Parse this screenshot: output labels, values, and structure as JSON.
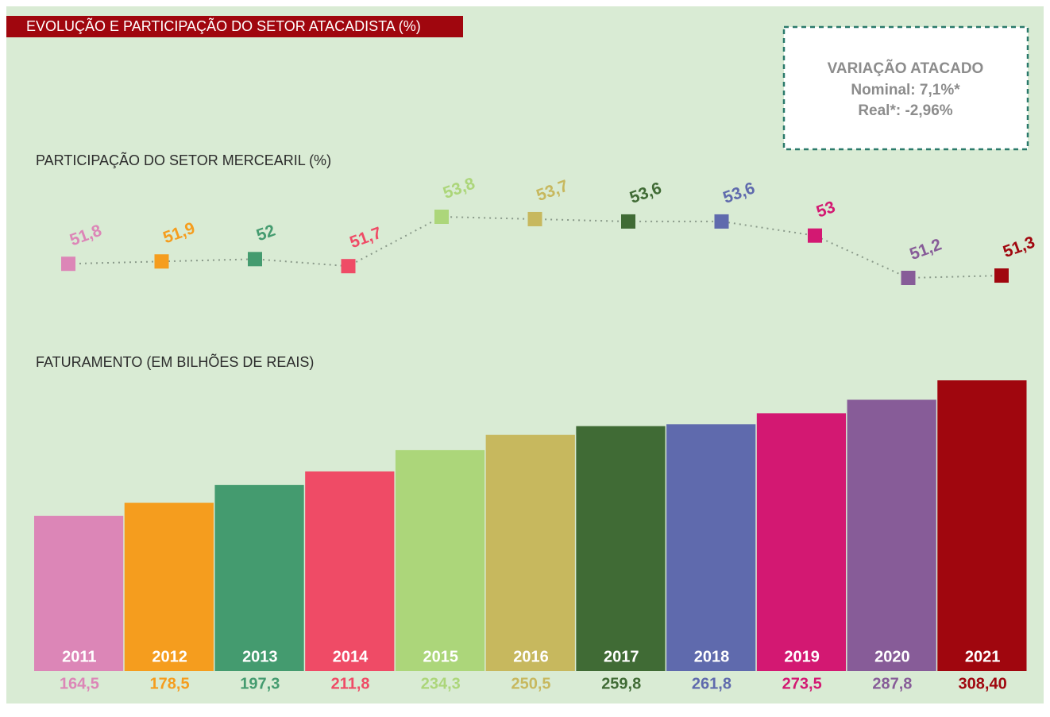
{
  "header": {
    "title": "EVOLUÇÃO E PARTICIPAÇÃO DO SETOR ATACADISTA (%)"
  },
  "note": {
    "title": "VARIAÇÃO ATACADO",
    "lines": [
      "Nominal: 7,1%*",
      "Real*: -2,96%"
    ]
  },
  "chart_data": [
    {
      "type": "line",
      "title": "PARTICIPAÇÃO DO SETOR MERCEARIL (%)",
      "values": [
        51.8,
        51.9,
        52,
        51.7,
        53.8,
        53.7,
        53.6,
        53.6,
        53,
        51.2,
        51.3
      ],
      "value_labels": [
        "51,8",
        "51,9",
        "52",
        "51,7",
        "53,8",
        "53,7",
        "53,6",
        "53,6",
        "53",
        "51,2",
        "51,3"
      ],
      "colors": [
        "#dc86b7",
        "#f59d1e",
        "#449b6f",
        "#ef4b66",
        "#acd67a",
        "#c7b85e",
        "#406b35",
        "#5f6aad",
        "#d31872",
        "#875c98",
        "#a0060e"
      ],
      "line_color": "#8a9a8a"
    },
    {
      "type": "bar",
      "title": "FATURAMENTO (EM BILHÕES DE REAIS)",
      "categories": [
        "2011",
        "2012",
        "2013",
        "2014",
        "2015",
        "2016",
        "2017",
        "2018",
        "2019",
        "2020",
        "2021"
      ],
      "values": [
        164.5,
        178.5,
        197.3,
        211.8,
        234.3,
        250.5,
        259.8,
        261.8,
        273.5,
        287.8,
        308.4
      ],
      "value_labels": [
        "164,5",
        "178,5",
        "197,3",
        "211,8",
        "234,3",
        "250,5",
        "259,8",
        "261,8",
        "273,5",
        "287,8",
        "308,40"
      ],
      "colors": [
        "#dc86b7",
        "#f59d1e",
        "#449b6f",
        "#ef4b66",
        "#acd67a",
        "#c7b85e",
        "#406b35",
        "#5f6aad",
        "#d31872",
        "#875c98",
        "#a0060e"
      ]
    }
  ]
}
